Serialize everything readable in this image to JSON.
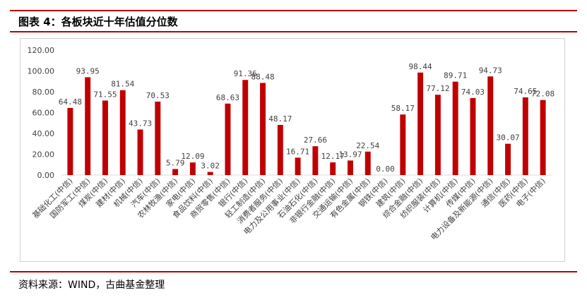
{
  "header": {
    "title": "图表 4：各板块近十年估值分位数"
  },
  "footer": {
    "source": "资料来源：WIND，古曲基金整理"
  },
  "colors": {
    "accent": "#c00000",
    "bar": "#c00000"
  },
  "chart_data": {
    "type": "bar",
    "title": "",
    "xlabel": "",
    "ylabel": "",
    "ylim": [
      0,
      120
    ],
    "yticks": [
      "0.00",
      "20.00",
      "40.00",
      "60.00",
      "80.00",
      "100.00",
      "120.00"
    ],
    "grid": false,
    "categories": [
      "基础化工(中信)",
      "国防军工(中信)",
      "煤炭(中信)",
      "建材(中信)",
      "机械(中信)",
      "汽车(中信)",
      "农林牧渔(中信)",
      "家电(中信)",
      "食品饮料(中信)",
      "商贸零售(中信)",
      "银行(中信)",
      "轻工制造(中信)",
      "消费者服务(中信)",
      "电力及公用事业(中信)",
      "石油石化(中信)",
      "非银行金融(中信)",
      "交通运输(中信)",
      "有色金属(中信)",
      "钢铁(中信)",
      "建筑(中信)",
      "综合金融(中信)",
      "纺织服装(中信)",
      "计算机(中信)",
      "传媒(中信)",
      "电力设备及新能源(中信)",
      "通信(中信)",
      "医药(中信)",
      "电子(中信)"
    ],
    "values": [
      64.48,
      93.95,
      71.55,
      81.54,
      43.73,
      70.53,
      5.79,
      12.09,
      3.02,
      68.63,
      91.36,
      88.48,
      48.17,
      16.71,
      27.66,
      12.17,
      13.97,
      22.54,
      0.0,
      58.17,
      98.44,
      77.12,
      89.71,
      74.03,
      94.73,
      30.07,
      74.65,
      72.08
    ],
    "data_labels": [
      "64.48",
      "93.95",
      "71.55",
      "81.54",
      "43.73",
      "70.53",
      "5.79",
      "12.09",
      "3.02",
      "68.63",
      "91.36",
      "88.48",
      "48.17",
      "16.71",
      "27.66",
      "12.17",
      "13.97",
      "22.54",
      "0.00",
      "58.17",
      "98.44",
      "77.12",
      "89.71",
      "74.03",
      "94.73",
      "30.07",
      "74.65",
      "72.08"
    ]
  }
}
